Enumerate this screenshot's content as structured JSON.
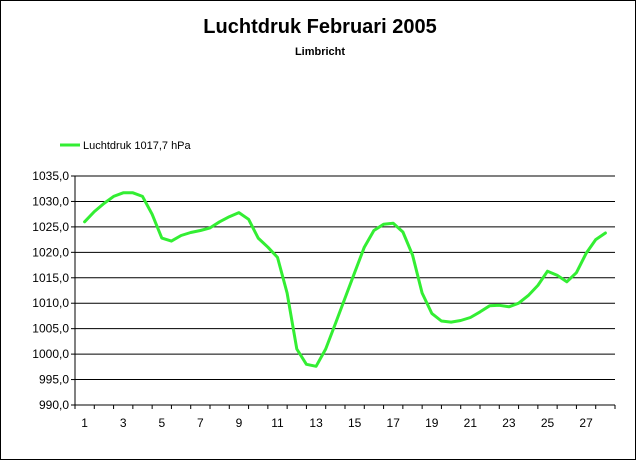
{
  "chart_data": {
    "type": "line",
    "title": "Luchtdruk Februari 2005",
    "subtitle": "Limbricht",
    "xlabel": "",
    "ylabel": "",
    "legend": {
      "position": "top-left",
      "label": "Luchtdruk 1017,7 hPa"
    },
    "x_tick_labels": [
      "1",
      "3",
      "5",
      "7",
      "9",
      "11",
      "13",
      "15",
      "17",
      "19",
      "21",
      "23",
      "25",
      "27"
    ],
    "y_tick_labels": [
      "990,0",
      "995,0",
      "1000,0",
      "1005,0",
      "1010,0",
      "1015,0",
      "1020,0",
      "1025,0",
      "1030,0",
      "1035,0"
    ],
    "xlim": [
      0.5,
      28.5
    ],
    "ylim": [
      990,
      1035
    ],
    "grid": "horizontal",
    "colors": {
      "line": "#33ee33",
      "grid": "#000000"
    },
    "series": [
      {
        "name": "Luchtdruk 1017,7 hPa",
        "x": [
          1,
          1.5,
          2,
          2.5,
          3,
          3.5,
          4,
          4.5,
          5,
          5.5,
          6,
          6.5,
          7,
          7.5,
          8,
          8.5,
          9,
          9.5,
          10,
          10.5,
          11,
          11.5,
          12,
          12.5,
          13,
          13.5,
          14,
          14.5,
          15,
          15.5,
          16,
          16.5,
          17,
          17.5,
          18,
          18.5,
          19,
          19.5,
          20,
          20.5,
          21,
          21.5,
          22,
          22.5,
          23,
          23.5,
          24,
          24.5,
          25,
          25.5,
          26,
          26.5,
          27,
          27.5,
          28
        ],
        "values": [
          1026.0,
          1028.0,
          1029.6,
          1031.0,
          1031.7,
          1031.7,
          1031.0,
          1027.5,
          1022.8,
          1022.2,
          1023.3,
          1023.9,
          1024.3,
          1024.8,
          1026.0,
          1027.0,
          1027.8,
          1026.5,
          1022.8,
          1021.0,
          1019.0,
          1012.0,
          1001.0,
          998.0,
          997.6,
          1001.0,
          1006.0,
          1011.0,
          1016.0,
          1021.0,
          1024.3,
          1025.5,
          1025.7,
          1024.0,
          1019.5,
          1012.0,
          1008.0,
          1006.5,
          1006.3,
          1006.6,
          1007.2,
          1008.3,
          1009.5,
          1009.6,
          1009.3,
          1010.0,
          1011.5,
          1013.5,
          1016.3,
          1015.5,
          1014.2,
          1016.0,
          1019.8,
          1022.5,
          1023.8
        ]
      }
    ]
  }
}
